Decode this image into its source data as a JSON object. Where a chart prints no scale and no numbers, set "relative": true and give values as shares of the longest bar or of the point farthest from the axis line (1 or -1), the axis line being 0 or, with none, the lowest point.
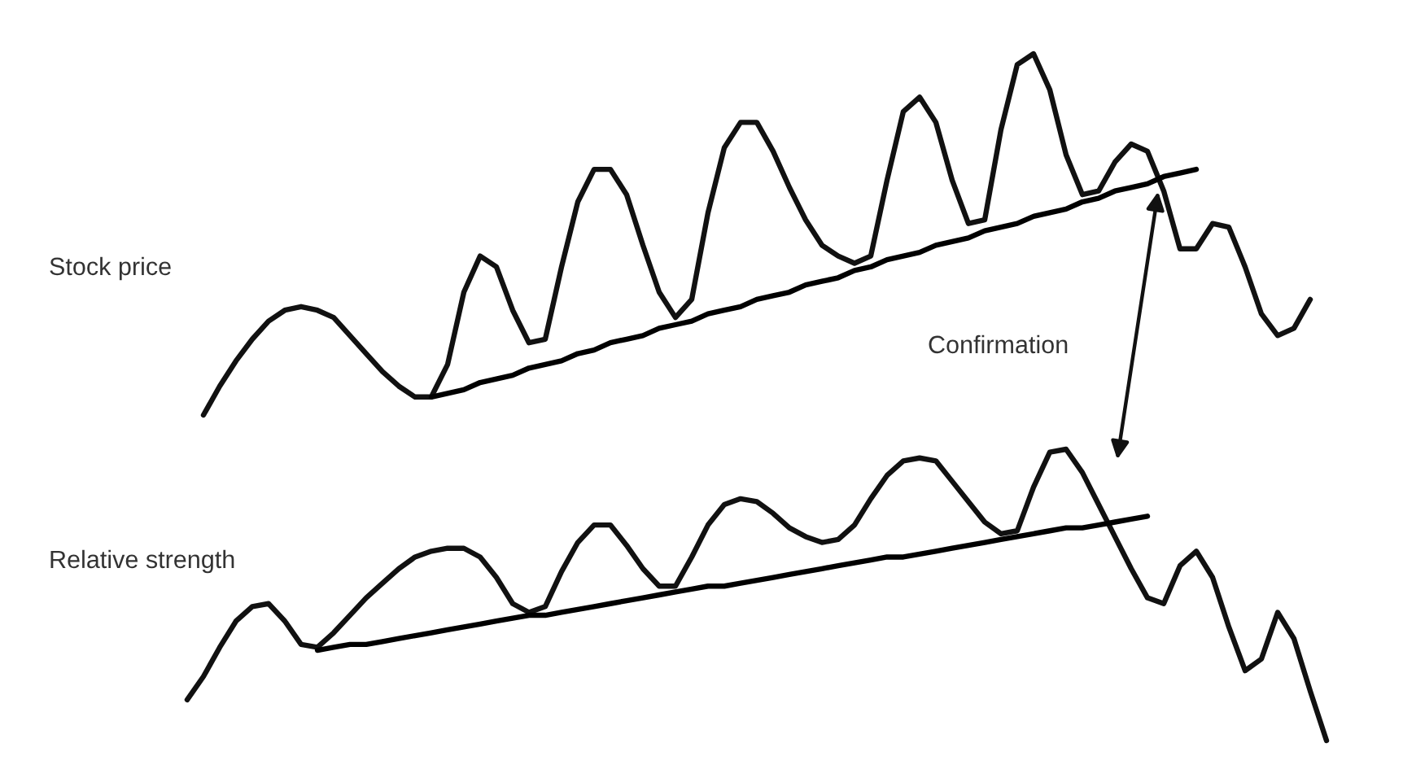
{
  "chart_data": [
    {
      "type": "line",
      "relative": true,
      "categories": [
        null,
        null,
        null,
        null,
        null,
        null,
        null,
        null,
        null,
        null,
        null,
        null,
        null,
        null,
        null,
        null,
        null,
        null,
        null,
        null,
        null,
        null,
        null,
        null,
        null,
        null,
        null,
        null,
        null,
        null,
        null,
        null,
        null,
        null,
        null,
        null,
        null,
        null,
        null,
        null,
        null,
        null,
        null,
        null,
        null,
        null,
        null,
        null,
        null,
        null,
        null,
        null,
        null,
        null,
        null,
        null,
        null,
        null,
        null,
        null,
        null,
        null,
        null,
        null,
        null,
        null,
        null,
        null,
        null
      ],
      "series": [
        {
          "name": "Stock price",
          "color": "#111111",
          "values": [
            0.0,
            0.08,
            0.15,
            0.21,
            0.26,
            0.29,
            0.3,
            0.29,
            0.27,
            0.22,
            0.17,
            0.12,
            0.08,
            0.05,
            0.05,
            0.14,
            0.34,
            0.44,
            0.41,
            0.29,
            0.2,
            0.21,
            0.41,
            0.59,
            0.68,
            0.68,
            0.61,
            0.47,
            0.34,
            0.27,
            0.32,
            0.56,
            0.74,
            0.81,
            0.81,
            0.73,
            0.63,
            0.54,
            0.47,
            0.44,
            0.42,
            0.44,
            0.65,
            0.84,
            0.88,
            0.81,
            0.65,
            0.53,
            0.54,
            0.79,
            0.97,
            1.0,
            0.9,
            0.72,
            0.61,
            0.62,
            0.7,
            0.75,
            0.73,
            0.62,
            0.46,
            0.46,
            0.53,
            0.52,
            0.41,
            0.28,
            0.22,
            0.24,
            0.32
          ]
        },
        {
          "color": "#000000",
          "values": [
            null,
            null,
            null,
            null,
            null,
            null,
            null,
            null,
            null,
            null,
            null,
            null,
            null,
            null,
            0.05,
            0.06,
            0.07,
            0.09,
            0.1,
            0.11,
            0.13,
            0.14,
            0.15,
            0.17,
            0.18,
            0.2,
            0.21,
            0.22,
            0.24,
            0.25,
            0.26,
            0.28,
            0.29,
            0.3,
            0.32,
            0.33,
            0.34,
            0.36,
            0.37,
            0.38,
            0.4,
            0.41,
            0.43,
            0.44,
            0.45,
            0.47,
            0.48,
            0.49,
            0.51,
            0.52,
            0.53,
            0.55,
            0.56,
            0.57,
            0.59,
            0.6,
            0.62,
            0.63,
            0.64,
            0.66,
            0.67,
            0.68,
            null,
            null,
            null,
            null,
            null,
            null,
            null
          ]
        }
      ],
      "annotations": [
        "Confirmation"
      ],
      "line_style": "solid",
      "marker": "none"
    },
    {
      "type": "line",
      "relative": true,
      "categories": [
        null,
        null,
        null,
        null,
        null,
        null,
        null,
        null,
        null,
        null,
        null,
        null,
        null,
        null,
        null,
        null,
        null,
        null,
        null,
        null,
        null,
        null,
        null,
        null,
        null,
        null,
        null,
        null,
        null,
        null,
        null,
        null,
        null,
        null,
        null,
        null,
        null,
        null,
        null,
        null,
        null,
        null,
        null,
        null,
        null,
        null,
        null,
        null,
        null,
        null,
        null,
        null,
        null,
        null,
        null,
        null,
        null,
        null,
        null,
        null,
        null,
        null,
        null,
        null,
        null,
        null,
        null,
        null,
        null,
        null,
        null
      ],
      "series": [
        {
          "name": "Relative strength",
          "color": "#111111",
          "values": [
            0.14,
            0.22,
            0.32,
            0.41,
            0.46,
            0.47,
            0.41,
            0.33,
            0.32,
            0.37,
            0.43,
            0.49,
            0.54,
            0.59,
            0.63,
            0.65,
            0.66,
            0.66,
            0.63,
            0.56,
            0.47,
            0.44,
            0.46,
            0.58,
            0.68,
            0.74,
            0.74,
            0.67,
            0.59,
            0.53,
            0.53,
            0.63,
            0.74,
            0.81,
            0.83,
            0.82,
            0.78,
            0.73,
            0.7,
            0.68,
            0.69,
            0.74,
            0.83,
            0.91,
            0.96,
            0.97,
            0.96,
            0.89,
            0.82,
            0.75,
            0.71,
            0.72,
            0.87,
            0.99,
            1.0,
            0.92,
            0.81,
            0.7,
            0.59,
            0.49,
            0.47,
            0.6,
            0.65,
            0.56,
            0.39,
            0.24,
            0.28,
            0.44,
            0.35,
            0.17,
            0.0
          ]
        },
        {
          "color": "#000000",
          "values": [
            null,
            null,
            null,
            null,
            null,
            null,
            null,
            null,
            0.31,
            0.32,
            0.33,
            0.33,
            0.34,
            0.35,
            0.36,
            0.37,
            0.38,
            0.39,
            0.4,
            0.41,
            0.42,
            0.43,
            0.43,
            0.44,
            0.45,
            0.46,
            0.47,
            0.48,
            0.49,
            0.5,
            0.51,
            0.52,
            0.53,
            0.53,
            0.54,
            0.55,
            0.56,
            0.57,
            0.58,
            0.59,
            0.6,
            0.61,
            0.62,
            0.63,
            0.63,
            0.64,
            0.65,
            0.66,
            0.67,
            0.68,
            0.69,
            0.7,
            0.71,
            0.72,
            0.73,
            0.73,
            0.74,
            0.75,
            0.76,
            0.77,
            null,
            null,
            null,
            null,
            null,
            null,
            null,
            null,
            null,
            null,
            null
          ]
        }
      ],
      "line_style": "solid",
      "marker": "none"
    }
  ]
}
